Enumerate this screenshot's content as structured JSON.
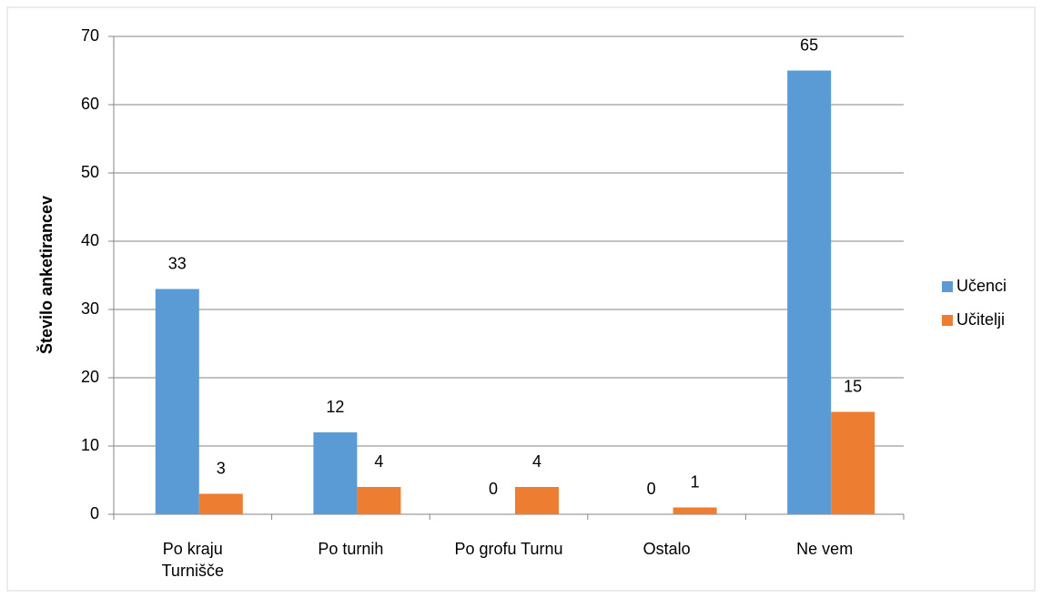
{
  "chart_data": {
    "type": "bar",
    "y_label": "Število anketirancev",
    "categories": [
      "Po kraju Turnišče",
      "Po turnih",
      "Po grofu Turnu",
      "Ostalo",
      "Ne vem"
    ],
    "series": [
      {
        "name": "Učenci",
        "color": "#5b9bd5",
        "values": [
          33,
          12,
          0,
          0,
          65
        ]
      },
      {
        "name": "Učitelji",
        "color": "#ed7d31",
        "values": [
          3,
          4,
          4,
          1,
          15
        ]
      }
    ],
    "ylim": [
      0,
      70
    ],
    "yticks": [
      0,
      10,
      20,
      30,
      40,
      50,
      60,
      70
    ],
    "grid": true,
    "legend": "right"
  }
}
